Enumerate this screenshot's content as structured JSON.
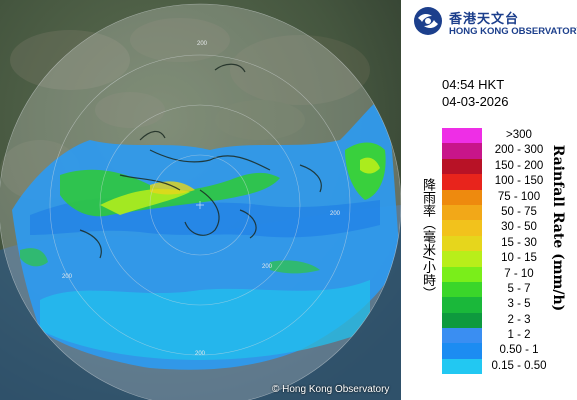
{
  "header": {
    "org_name_zh": "香港天文台",
    "org_name_en": "HONG KONG OBSERVATORY",
    "logo_icon": "hko-logo-icon",
    "brand_color": "#1c3f8c"
  },
  "timestamp": {
    "time": "04:54 HKT",
    "date": "04-03-2026"
  },
  "map": {
    "copyright": "© Hong Kong Observatory",
    "range_ring_labels": [
      "200",
      "200",
      "200",
      "200",
      "200"
    ]
  },
  "legend": {
    "title_zh": "降雨率（毫米/小時）",
    "title_en": "Rainfall Rate (mm/h)",
    "items": [
      {
        "label": ">300",
        "color": "#ee2ee6"
      },
      {
        "label": "200 - 300",
        "color": "#c8158a"
      },
      {
        "label": "150 - 200",
        "color": "#b81226"
      },
      {
        "label": "100 - 150",
        "color": "#e8241c"
      },
      {
        "label": "75 - 100",
        "color": "#ee8a0e"
      },
      {
        "label": "50 - 75",
        "color": "#f2a818"
      },
      {
        "label": "30 - 50",
        "color": "#f2c21c"
      },
      {
        "label": "15 - 30",
        "color": "#e6d61c"
      },
      {
        "label": "10 - 15",
        "color": "#b8ee1a"
      },
      {
        "label": "7 - 10",
        "color": "#7aee1a"
      },
      {
        "label": "5 - 7",
        "color": "#3ad62a"
      },
      {
        "label": "3 - 5",
        "color": "#1ab83a"
      },
      {
        "label": "2 - 3",
        "color": "#0e9a3e"
      },
      {
        "label": "1 - 2",
        "color": "#3a8ef2"
      },
      {
        "label": "0.50 - 1",
        "color": "#1c8cf2"
      },
      {
        "label": "0.15 - 0.50",
        "color": "#22c8f2"
      }
    ]
  }
}
